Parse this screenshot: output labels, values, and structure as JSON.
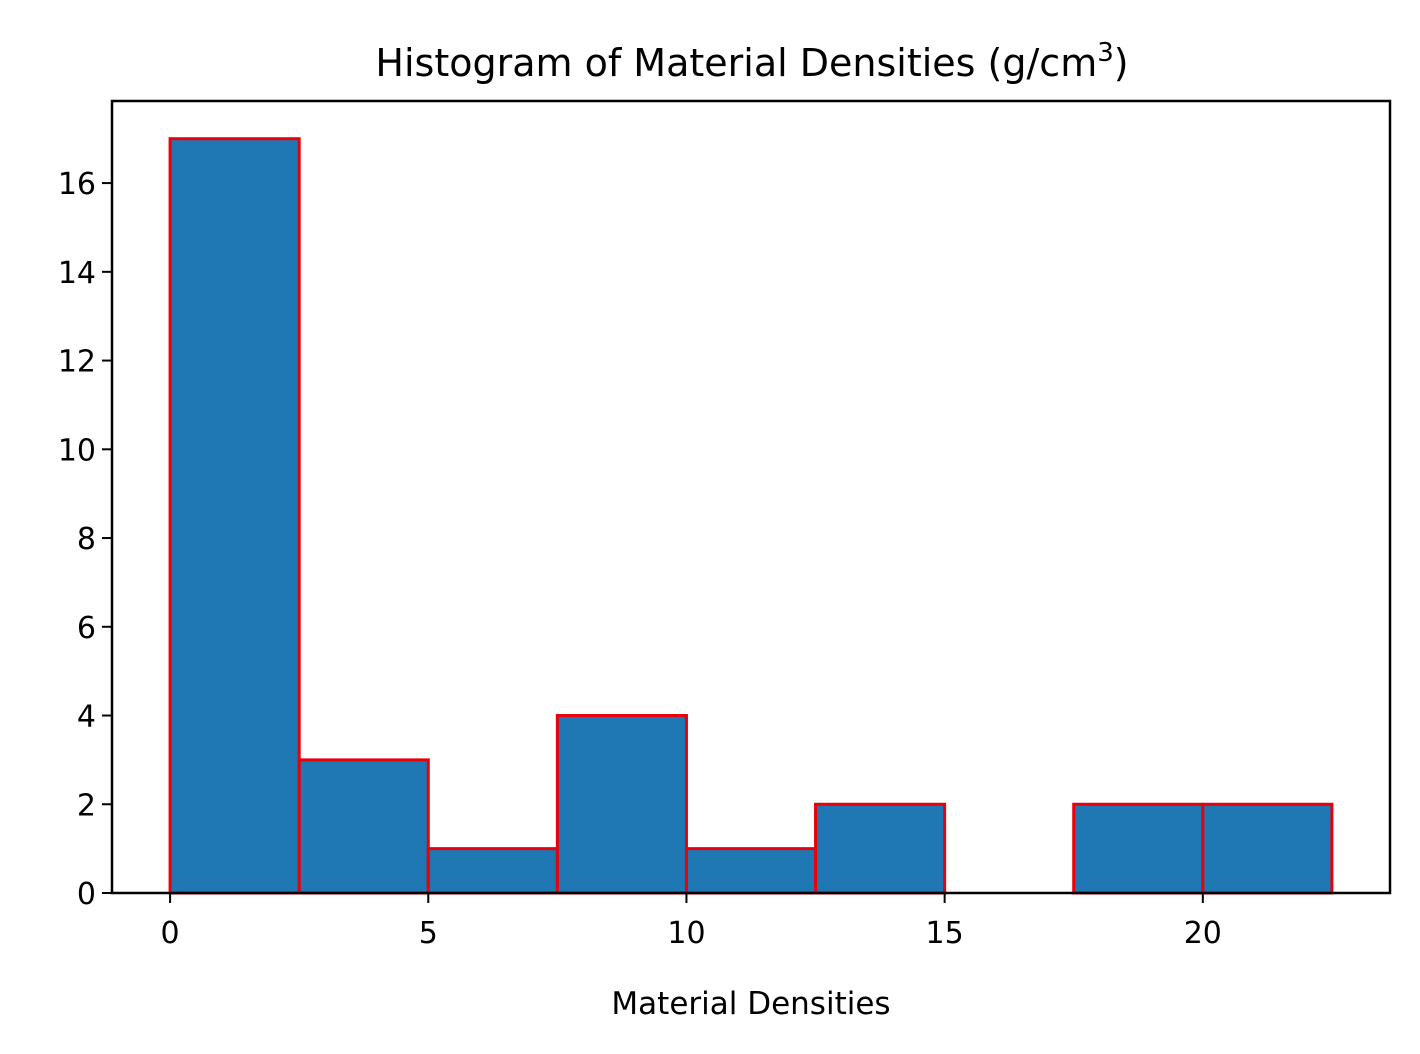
{
  "chart_data": {
    "type": "bar",
    "title": "Histogram of Material Densities (g/cm",
    "title_superscript": "3",
    "title_suffix": ")",
    "xlabel": "Material Densities",
    "ylabel": "",
    "bin_edges": [
      0,
      2.5,
      5,
      7.5,
      10,
      12.5,
      15,
      17.5,
      20,
      22.5
    ],
    "values": [
      17,
      3,
      1,
      4,
      1,
      2,
      0,
      2,
      2
    ],
    "xlim": [
      -1.125,
      23.625
    ],
    "ylim": [
      0,
      17.85
    ],
    "x_ticks": [
      0,
      5,
      10,
      15,
      20
    ],
    "y_ticks": [
      0,
      2,
      4,
      6,
      8,
      10,
      12,
      14,
      16
    ],
    "bar_color": "#1f77b4",
    "edge_color": "#e8000b",
    "grid": false
  }
}
